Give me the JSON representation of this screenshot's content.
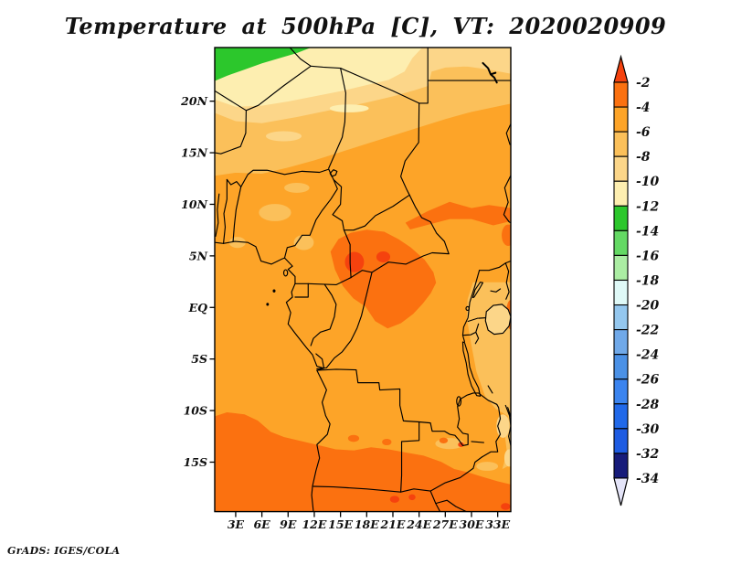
{
  "title": "Temperature at 500hPa [C], VT: 2020020909",
  "footer": "GrADS: IGES/COLA",
  "page_bg": "#ffffff",
  "map": {
    "lat_ticks": [
      {
        "label": "20N",
        "lat": 20
      },
      {
        "label": "15N",
        "lat": 15
      },
      {
        "label": "10N",
        "lat": 10
      },
      {
        "label": "5N",
        "lat": 5
      },
      {
        "label": "EQ",
        "lat": 0
      },
      {
        "label": "5S",
        "lat": -5
      },
      {
        "label": "10S",
        "lat": -10
      },
      {
        "label": "15S",
        "lat": -15
      }
    ],
    "lon_ticks": [
      {
        "label": "3E",
        "lon": 3
      },
      {
        "label": "6E",
        "lon": 6
      },
      {
        "label": "9E",
        "lon": 9
      },
      {
        "label": "12E",
        "lon": 12
      },
      {
        "label": "15E",
        "lon": 15
      },
      {
        "label": "18E",
        "lon": 18
      },
      {
        "label": "21E",
        "lon": 21
      },
      {
        "label": "24E",
        "lon": 24
      },
      {
        "label": "27E",
        "lon": 27
      },
      {
        "label": "30E",
        "lon": 30
      },
      {
        "label": "33E",
        "lon": 33
      }
    ]
  },
  "palette": {
    "above-2": "#f5420e",
    "-4to-2": "#fb7110",
    "-6to-4": "#fda428",
    "-8to-6": "#fbc05a",
    "-10to-8": "#fcd689",
    "-12to-10": "#fdeeb0",
    "-14to-12": "#2cc72c",
    "-16to-14": "#64d964",
    "-18to-16": "#abeda3",
    "-20to-18": "#dff9f7",
    "-22to-20": "#94c7ee",
    "-24to-22": "#70a9e9",
    "-26to-24": "#4b91e6",
    "-28to-26": "#3b84ef",
    "-30to-28": "#2169e9",
    "-32to-30": "#1e5ce2",
    "-34to-32": "#171c7a",
    "below-34": "#e4e4f8"
  },
  "colorbar": {
    "tick_labels": [
      "-2",
      "-4",
      "-6",
      "-8",
      "-10",
      "-12",
      "-14",
      "-16",
      "-18",
      "-20",
      "-22",
      "-24",
      "-26",
      "-28",
      "-30",
      "-32",
      "-34"
    ],
    "segments": [
      "-4to-2",
      "-6to-4",
      "-8to-6",
      "-10to-8",
      "-12to-10",
      "-14to-12",
      "-16to-14",
      "-18to-16",
      "-20to-18",
      "-22to-20",
      "-24to-22",
      "-26to-24",
      "-28to-26",
      "-30to-28",
      "-32to-30",
      "-34to-32"
    ],
    "top_arrow": "above-2",
    "bottom_arrow": "below-34"
  },
  "chart_data": {
    "type": "heatmap",
    "title": "Temperature at 500hPa [C], VT: 2020020909",
    "variable": "Temperature",
    "pressure_level_hPa": 500,
    "units": "C",
    "valid_time": "2020020909",
    "xlabel": "longitude",
    "ylabel": "latitude",
    "x_tick_labels": [
      "3E",
      "6E",
      "9E",
      "12E",
      "15E",
      "18E",
      "21E",
      "24E",
      "27E",
      "30E",
      "33E"
    ],
    "y_tick_labels": [
      "20N",
      "15N",
      "10N",
      "5N",
      "EQ",
      "5S",
      "10S",
      "15S"
    ],
    "approx_extent": {
      "lon_east": [
        0.6,
        34.5
      ],
      "lat": [
        -19.8,
        25.2
      ]
    },
    "contour_interval": 2,
    "levels": [
      -34,
      -32,
      -30,
      -28,
      -26,
      -24,
      -22,
      -20,
      -18,
      -16,
      -14,
      -12,
      -10,
      -8,
      -6,
      -4,
      -2
    ],
    "colors_low_to_high": [
      "#e4e4f8",
      "#171c7a",
      "#1e5ce2",
      "#2169e9",
      "#3b84ef",
      "#4b91e6",
      "#70a9e9",
      "#94c7ee",
      "#dff9f7",
      "#abeda3",
      "#64d964",
      "#2cc72c",
      "#fdeeb0",
      "#fcd689",
      "#fbc05a",
      "#fda428",
      "#fb7110",
      "#f5420e"
    ],
    "legend_position": "right",
    "grid": false,
    "approx_field_values": [
      {
        "region": "NW corner (Algeria ~24N)",
        "value_C": -13
      },
      {
        "region": "N Sahara band 20-24N west",
        "value_C": -11
      },
      {
        "region": "Sahara band 17-20N",
        "value_C": -9
      },
      {
        "region": "Sahel 13-17N",
        "value_C": -7
      },
      {
        "region": "West/Central Africa 0-13N",
        "value_C": -5
      },
      {
        "region": "Congo basin hot spot ~16.5E 4N",
        "value_C": -1.5
      },
      {
        "region": "CAR / N DR Congo 14-26E, 2S-7N",
        "value_C": -3
      },
      {
        "region": "S Sudan belt 8-10N, 23-34E",
        "value_C": -3
      },
      {
        "region": "East Africa highlands / Lake Victoria region",
        "value_C": -7
      },
      {
        "region": "Egypt ~23N",
        "value_C": -8.5
      },
      {
        "region": "Southern Africa south of ~13S",
        "value_C": -3
      },
      {
        "region": "small spots S Angola/Zambia ~18-19S",
        "value_C": -1.5
      }
    ]
  }
}
